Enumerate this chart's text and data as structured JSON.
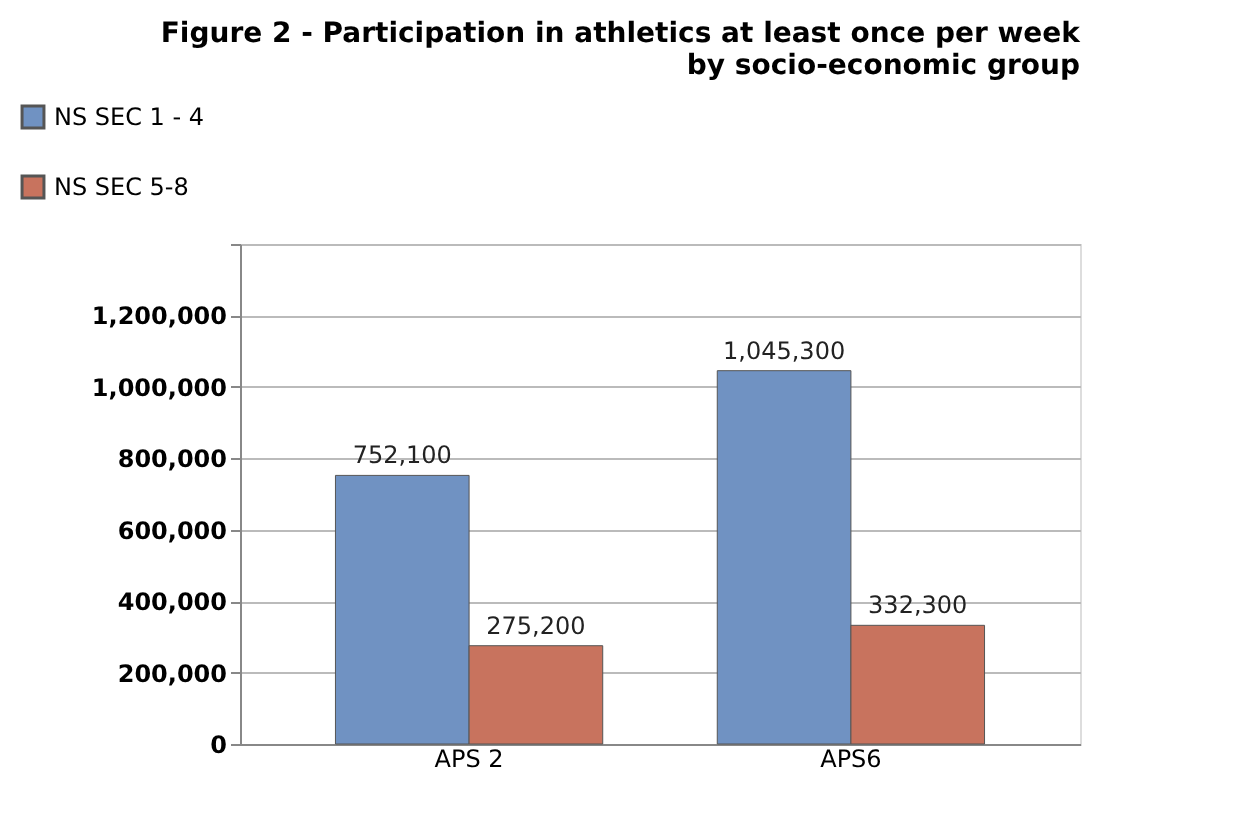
{
  "chart_data": {
    "type": "bar",
    "title": "Figure 2 - Participation in athletics at least once per week\nby socio-economic group",
    "categories": [
      "APS 2",
      "APS6"
    ],
    "series": [
      {
        "name": "NS SEC 1 - 4",
        "color": "#7092c2",
        "values": [
          752100,
          1045300
        ],
        "value_labels": [
          "752,100",
          "1,045,300"
        ]
      },
      {
        "name": "NS SEC 5-8",
        "color": "#c8735e",
        "values": [
          275200,
          332300
        ],
        "value_labels": [
          "275,200",
          "332,300"
        ]
      }
    ],
    "ylim": [
      0,
      1400000
    ],
    "yticks": [
      0,
      {
        "value": 200000,
        "label": "200,000"
      },
      {
        "value": 400000,
        "label": "400,000"
      },
      {
        "value": 600000,
        "label": "600,000"
      },
      {
        "value": 800000,
        "label": "800,000"
      },
      {
        "value": 1000000,
        "label": "1,000,000"
      },
      {
        "value": 1200000,
        "label": "1,200,000"
      },
      {
        "value": 1400000,
        "label": null
      }
    ],
    "grid": "y",
    "legend": "top left",
    "data_labels": true
  }
}
